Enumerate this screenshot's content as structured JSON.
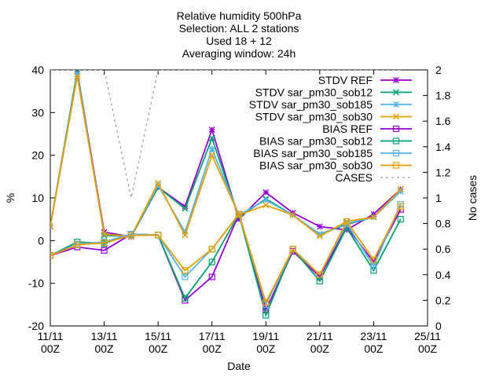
{
  "chart_data": {
    "type": "line",
    "title_lines": [
      "Relative humidity 500hPa",
      "Selection: ALL       2 stations",
      "Used 18 + 12",
      "Averaging window: 24h"
    ],
    "xlabel": "Date",
    "ylabel": "%",
    "y2label": "No cases",
    "ylim": [
      -20,
      40
    ],
    "y2lim": [
      0,
      2
    ],
    "xlim": [
      0,
      14
    ],
    "yticks": [
      -20,
      -10,
      0,
      10,
      20,
      30,
      40
    ],
    "y2ticks": [
      "0",
      "0.2",
      "0.4",
      "0.6",
      "0.8",
      "1",
      "1.2",
      "1.4",
      "1.6",
      "1.8",
      "2"
    ],
    "xticks": [
      {
        "x": 0,
        "l1": "11/11",
        "l2": "00Z"
      },
      {
        "x": 2,
        "l1": "13/11",
        "l2": "00Z"
      },
      {
        "x": 4,
        "l1": "15/11",
        "l2": "00Z"
      },
      {
        "x": 6,
        "l1": "17/11",
        "l2": "00Z"
      },
      {
        "x": 8,
        "l1": "19/11",
        "l2": "00Z"
      },
      {
        "x": 10,
        "l1": "21/11",
        "l2": "00Z"
      },
      {
        "x": 12,
        "l1": "23/11",
        "l2": "00Z"
      },
      {
        "x": 14,
        "l1": "25/11",
        "l2": "00Z"
      }
    ],
    "grid": false,
    "legend_position": "top-right",
    "x": [
      0,
      1,
      2,
      3,
      4,
      5,
      6,
      7,
      8,
      9,
      10,
      11,
      12,
      13
    ],
    "series": [
      {
        "name": "STDV REF",
        "color": "#9400d3",
        "marker": "star",
        "axis": "y1",
        "values": [
          3.3,
          39.6,
          2.0,
          0.9,
          12.5,
          8.0,
          26.0,
          5.0,
          11.3,
          6.5,
          3.3,
          2.5,
          6.2,
          12.0
        ]
      },
      {
        "name": "STDV sar_pm30_sob12",
        "color": "#009e73",
        "marker": "x",
        "axis": "y1",
        "values": [
          3.3,
          39.6,
          1.2,
          1.0,
          12.5,
          7.5,
          24.0,
          5.5,
          9.8,
          6.0,
          1.5,
          3.8,
          5.5,
          12.0
        ]
      },
      {
        "name": "STDV sar_pm30_sob185",
        "color": "#56b4e9",
        "marker": "star",
        "axis": "y1",
        "values": [
          3.3,
          39.0,
          1.5,
          1.0,
          13.0,
          2.0,
          21.5,
          6.0,
          9.5,
          6.0,
          1.5,
          4.0,
          5.5,
          11.5
        ]
      },
      {
        "name": "STDV sar_pm30_sob30",
        "color": "#e69f00",
        "marker": "x",
        "axis": "y1",
        "values": [
          3.3,
          38.5,
          1.5,
          1.0,
          13.5,
          1.3,
          20.0,
          6.0,
          8.3,
          6.0,
          1.0,
          4.5,
          5.5,
          12.0
        ]
      },
      {
        "name": "BIAS REF",
        "color": "#9400d3",
        "marker": "square",
        "axis": "y1",
        "values": [
          -3.5,
          -1.5,
          -2.3,
          1.5,
          1.3,
          -14.0,
          -8.5,
          6.2,
          -16.3,
          -2.5,
          -8.5,
          3.2,
          -5.0,
          7.3
        ]
      },
      {
        "name": "BIAS sar_pm30_sob12",
        "color": "#009e73",
        "marker": "square",
        "axis": "y1",
        "values": [
          -3.5,
          -0.3,
          -0.7,
          1.5,
          1.3,
          -13.5,
          -5.0,
          6.2,
          -17.5,
          -2.0,
          -9.5,
          3.0,
          -7.0,
          5.0
        ]
      },
      {
        "name": "BIAS sar_pm30_sob185",
        "color": "#56b4e9",
        "marker": "square",
        "axis": "y1",
        "values": [
          -3.5,
          -0.8,
          -0.3,
          1.5,
          1.3,
          -8.5,
          -2.0,
          6.2,
          -15.0,
          -2.0,
          -8.0,
          4.0,
          -6.0,
          8.5
        ]
      },
      {
        "name": "BIAS sar_pm30_sob30",
        "color": "#e69f00",
        "marker": "square",
        "axis": "y1",
        "values": [
          -3.5,
          -1.0,
          -0.5,
          1.2,
          1.3,
          -7.0,
          -2.0,
          6.2,
          -14.5,
          -2.0,
          -8.0,
          4.5,
          -4.5,
          8.0
        ]
      },
      {
        "name": "CASES",
        "color": "#a0a0a0",
        "marker": "none",
        "dashed": true,
        "axis": "y2",
        "values": [
          2,
          2,
          2,
          1,
          2,
          2,
          2,
          2,
          2,
          2,
          2,
          2,
          2,
          2
        ]
      }
    ]
  }
}
